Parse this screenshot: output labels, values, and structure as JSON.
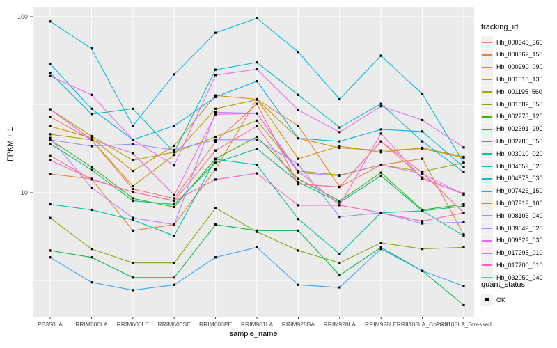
{
  "chart_data": {
    "type": "line",
    "title": "",
    "xlabel": "sample_name",
    "ylabel": "FPKM + 1",
    "y_scale": "log10",
    "ylim": [
      2,
      115
    ],
    "y_ticks": [
      10,
      100
    ],
    "y_tick_labels": [
      "10",
      "100"
    ],
    "y_minor_ticks": [
      3.162,
      31.62
    ],
    "grid": "on",
    "panel_color": "#EBEBEB",
    "grid_color": "#FFFFFF",
    "point_shape": "filled-square-black",
    "legend_position": "right",
    "categories": [
      "PB350LA",
      "RRIM600LA",
      "RRIM600LE",
      "RRIM600SE",
      "RRIM600PE",
      "RRIM901LA",
      "RRIM928BA",
      "RRIM928LA",
      "RRIM928LE",
      "RRII105LA_Control",
      "RRII105LA_Stressed"
    ],
    "series": [
      {
        "name": "Hb_000345_360",
        "color": "#F8766D",
        "values": [
          27,
          20,
          10.5,
          9.3,
          19.5,
          32,
          11.2,
          10.8,
          19.6,
          12.2,
          9.8
        ]
      },
      {
        "name": "Hb_000362_150",
        "color": "#EA8331",
        "values": [
          12.8,
          12,
          6.1,
          6.6,
          13.6,
          34,
          24,
          10.8,
          14.4,
          15.6,
          5.8
        ]
      },
      {
        "name": "Hb_000990_090",
        "color": "#D89000",
        "values": [
          23.9,
          20.5,
          13.3,
          18.5,
          35.7,
          34,
          15.6,
          18.4,
          17,
          18,
          16
        ]
      },
      {
        "name": "Hb_001018_130",
        "color": "#C09B00",
        "values": [
          21.5,
          20,
          10.9,
          16.4,
          30,
          33.8,
          20.4,
          18,
          17.4,
          17.8,
          15.8
        ]
      },
      {
        "name": "Hb_001195_560",
        "color": "#A3A500",
        "values": [
          29.8,
          21,
          15.3,
          17,
          20.8,
          25.7,
          13.3,
          12.6,
          14.4,
          13.2,
          14.8
        ]
      },
      {
        "name": "Hb_001882_050",
        "color": "#7CAE00",
        "values": [
          7.2,
          4.8,
          4,
          4,
          8.2,
          6,
          4.7,
          4,
          5.2,
          4.8,
          4.9
        ]
      },
      {
        "name": "Hb_002273_120",
        "color": "#39B600",
        "values": [
          20,
          14,
          9.3,
          8.3,
          15.6,
          20.8,
          12,
          9,
          13,
          8,
          8.6
        ]
      },
      {
        "name": "Hb_002391_290",
        "color": "#00BB4E",
        "values": [
          4.7,
          4.3,
          3.3,
          3.3,
          6.6,
          6.1,
          6.1,
          3.4,
          4.9,
          3.6,
          2.3
        ]
      },
      {
        "name": "Hb_002785_050",
        "color": "#00BF7D",
        "values": [
          19,
          13.5,
          9,
          8.6,
          14.8,
          17.8,
          11.5,
          8.8,
          12.5,
          7.9,
          8.4
        ]
      },
      {
        "name": "Hb_003010_020",
        "color": "#00C1A3",
        "values": [
          8.6,
          8,
          7,
          5.7,
          15.5,
          14.4,
          7.1,
          4.5,
          7.7,
          7.9,
          5.7
        ]
      },
      {
        "name": "Hb_004659_020",
        "color": "#00BFC4",
        "values": [
          48,
          28,
          30,
          17,
          50,
          55,
          36,
          23.5,
          32,
          19.6,
          13.1
        ]
      },
      {
        "name": "Hb_004875_030",
        "color": "#00BAE0",
        "values": [
          94,
          66,
          24,
          47,
          81,
          98,
          63,
          34,
          60,
          36.4,
          14.8
        ]
      },
      {
        "name": "Hb_007426_150",
        "color": "#00B0F6",
        "values": [
          54,
          30,
          20,
          24,
          35,
          43,
          20.4,
          19.6,
          22.9,
          22.3,
          14
        ]
      },
      {
        "name": "Hb_007919_100",
        "color": "#35A2FF",
        "values": [
          4.3,
          3.1,
          2.8,
          3,
          4.3,
          4.9,
          3,
          2.9,
          4.8,
          3.6,
          2.95
        ]
      },
      {
        "name": "Hb_008103_040",
        "color": "#9590FF",
        "values": [
          20,
          18.4,
          18.9,
          17.5,
          20,
          20,
          14.5,
          7.3,
          7.7,
          6.7,
          6.8
        ]
      },
      {
        "name": "Hb_009049_020",
        "color": "#C77CFF",
        "values": [
          20.5,
          10.7,
          7.2,
          6.6,
          28.7,
          28.2,
          13,
          12.5,
          14.4,
          12.8,
          9.8
        ]
      },
      {
        "name": "Hb_009529_030",
        "color": "#E76BF3",
        "values": [
          46,
          36,
          20,
          14.3,
          46.6,
          50.3,
          29.5,
          22.1,
          31,
          25.9,
          18.1
        ]
      },
      {
        "name": "Hb_017295_010",
        "color": "#FA62DB",
        "values": [
          29.8,
          20,
          16.8,
          9.7,
          27.9,
          28.2,
          13.3,
          8.5,
          21.7,
          12,
          9.9
        ]
      },
      {
        "name": "Hb_017700_010",
        "color": "#FF62BC",
        "values": [
          15.3,
          12,
          10.1,
          9,
          11.9,
          12.9,
          8.5,
          8.5,
          7.7,
          6.9,
          7.7
        ]
      },
      {
        "name": "Hb_032050_040",
        "color": "#FF6A98",
        "values": [
          16.3,
          11.9,
          10.1,
          9,
          17.4,
          23.9,
          11.2,
          10.8,
          19.6,
          13,
          7.7
        ]
      }
    ]
  },
  "legend": {
    "tracking_title": "tracking_id",
    "quant_title": "quant_status",
    "quant_items": [
      {
        "label": "OK"
      }
    ]
  },
  "axis_text_color": "#4D4D4D"
}
